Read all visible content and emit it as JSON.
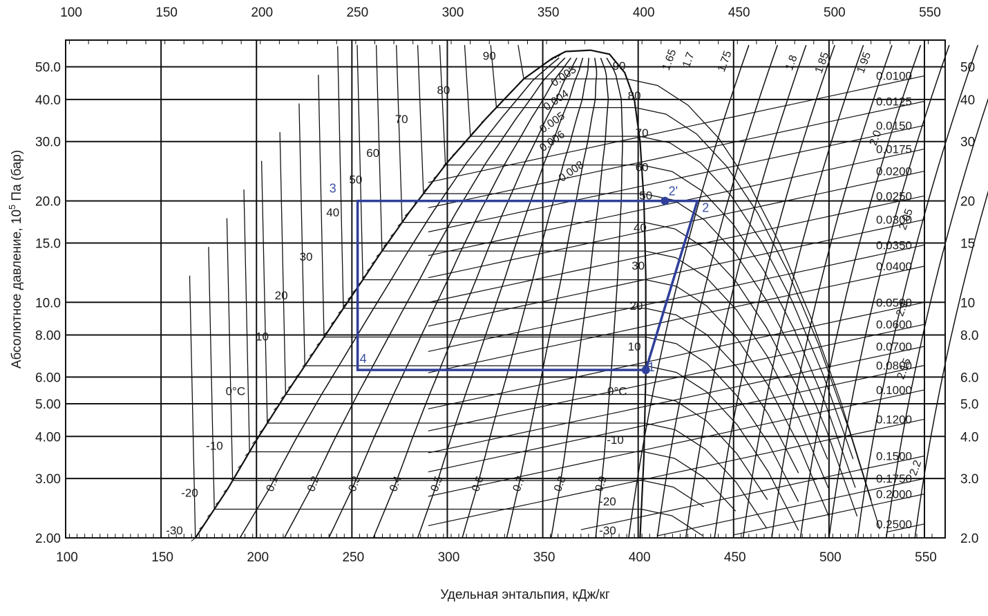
{
  "chart_data": {
    "type": "line",
    "xlabel": "Удельная энтальпия, кДж/кг",
    "ylabel": "Абсолютное давление, 10",
    "ylabel_sup": "5",
    "ylabel_tail": " Па (бар)",
    "x_scale": "linear",
    "y_scale": "log",
    "xlim": [
      100,
      555
    ],
    "ylim": [
      2.0,
      60
    ],
    "grid": true,
    "x_ticks_bottom": [
      "100",
      "150",
      "200",
      "250",
      "300",
      "350",
      "400",
      "450",
      "500",
      "550"
    ],
    "x_ticks_top": [
      "100",
      "150",
      "200",
      "250",
      "300",
      "350",
      "400",
      "450",
      "500",
      "550"
    ],
    "y_ticks_left": [
      {
        "value": 50,
        "label": "50.0"
      },
      {
        "value": 40,
        "label": "40.0"
      },
      {
        "value": 30,
        "label": "30.0"
      },
      {
        "value": 20,
        "label": "20.0"
      },
      {
        "value": 15,
        "label": "15.0"
      },
      {
        "value": 10,
        "label": "10.0"
      },
      {
        "value": 8,
        "label": "8.00"
      },
      {
        "value": 6,
        "label": "6.00"
      },
      {
        "value": 5,
        "label": "5.00"
      },
      {
        "value": 4,
        "label": "4.00"
      },
      {
        "value": 3,
        "label": "3.00"
      },
      {
        "value": 2,
        "label": "2.00"
      }
    ],
    "y_ticks_right": [
      {
        "value": 50,
        "label": "50"
      },
      {
        "value": 40,
        "label": "40"
      },
      {
        "value": 30,
        "label": "30"
      },
      {
        "value": 20,
        "label": "20"
      },
      {
        "value": 15,
        "label": "15"
      },
      {
        "value": 10,
        "label": "10"
      },
      {
        "value": 8,
        "label": "8.0"
      },
      {
        "value": 6,
        "label": "6.0"
      },
      {
        "value": 5,
        "label": "5.0"
      },
      {
        "value": 4,
        "label": "4.0"
      },
      {
        "value": 3,
        "label": "3.0"
      },
      {
        "value": 2,
        "label": "2.0"
      }
    ],
    "saturation_dome": {
      "liquid": [
        [
          168,
          2.0
        ],
        [
          185,
          2.8
        ],
        [
          200,
          3.9
        ],
        [
          215,
          5.3
        ],
        [
          230,
          7.1
        ],
        [
          245,
          9.5
        ],
        [
          255,
          11.5
        ],
        [
          265,
          14.0
        ],
        [
          280,
          18.5
        ],
        [
          300,
          26.0
        ],
        [
          320,
          35.0
        ],
        [
          340,
          46.0
        ],
        [
          355,
          53.0
        ],
        [
          362,
          55.5
        ]
      ],
      "vapor": [
        [
          362,
          55.5
        ],
        [
          375,
          56.0
        ],
        [
          385,
          54.5
        ],
        [
          393,
          48.0
        ],
        [
          398,
          40.0
        ],
        [
          401,
          30.0
        ],
        [
          403,
          20.0
        ],
        [
          404,
          12.0
        ],
        [
          404,
          6.1
        ],
        [
          403,
          3.5
        ],
        [
          401,
          2.0
        ]
      ]
    },
    "liquid_temperature_labels": [
      {
        "text": "90",
        "h": 322,
        "p": 52.5
      },
      {
        "text": "80",
        "h": 298,
        "p": 41.5
      },
      {
        "text": "70",
        "h": 276,
        "p": 34.0
      },
      {
        "text": "60",
        "h": 261,
        "p": 27.0
      },
      {
        "text": "50",
        "h": 252,
        "p": 22.5
      },
      {
        "text": "40",
        "h": 240,
        "p": 18.0
      },
      {
        "text": "30",
        "h": 226,
        "p": 13.3
      },
      {
        "text": "20",
        "h": 213,
        "p": 10.2
      },
      {
        "text": "10",
        "h": 203,
        "p": 7.7
      },
      {
        "text": "0°C",
        "h": 189,
        "p": 5.3
      },
      {
        "text": "-10",
        "h": 178,
        "p": 3.65
      },
      {
        "text": "-20",
        "h": 165,
        "p": 2.65
      },
      {
        "text": "-30",
        "h": 157,
        "p": 2.05
      }
    ],
    "vapor_temperature_labels": [
      {
        "text": "90",
        "h": 390,
        "p": 49.0
      },
      {
        "text": "80",
        "h": 398,
        "p": 40.0
      },
      {
        "text": "70",
        "h": 402,
        "p": 31.0
      },
      {
        "text": "60",
        "h": 402,
        "p": 24.5
      },
      {
        "text": "50",
        "h": 404,
        "p": 20.2
      },
      {
        "text": "40",
        "h": 401,
        "p": 16.2
      },
      {
        "text": "30",
        "h": 400,
        "p": 12.5
      },
      {
        "text": "20",
        "h": 399,
        "p": 9.5
      },
      {
        "text": "10",
        "h": 398,
        "p": 7.2
      },
      {
        "text": "0°C",
        "h": 389,
        "p": 5.3
      },
      {
        "text": "-10",
        "h": 388,
        "p": 3.8
      },
      {
        "text": "-20",
        "h": 384,
        "p": 2.5
      },
      {
        "text": "-30",
        "h": 384,
        "p": 2.05
      }
    ],
    "quality_labels": [
      "0.1",
      "0.2",
      "0.3",
      "0.4",
      "0.5",
      "0.6",
      "0.7",
      "0.8",
      "0.9"
    ],
    "entropy_labels": [
      "1.65",
      "1.7",
      "1.75",
      "1.8",
      "1.85",
      "1.95",
      "2.0",
      "2.05",
      "2.1",
      "2.15",
      "2.2"
    ],
    "specific_volume_labels": [
      "0.003",
      "0.004",
      "0.005",
      "0.006",
      "0.008"
    ],
    "specific_volume_right_labels": [
      {
        "text": "0.0100",
        "p": 47.0
      },
      {
        "text": "0.0125",
        "p": 39.5
      },
      {
        "text": "0.0150",
        "p": 33.5
      },
      {
        "text": "0.0175",
        "p": 28.5
      },
      {
        "text": "0.0200",
        "p": 24.5
      },
      {
        "text": "0.0250",
        "p": 20.7
      },
      {
        "text": "0.0300",
        "p": 17.6
      },
      {
        "text": "0.0350",
        "p": 14.8
      },
      {
        "text": "0.0400",
        "p": 12.8
      },
      {
        "text": "0.0500",
        "p": 10.0
      },
      {
        "text": "0.0600",
        "p": 8.6
      },
      {
        "text": "0.0700",
        "p": 7.4
      },
      {
        "text": "0.0800",
        "p": 6.5
      },
      {
        "text": "0.1000",
        "p": 5.5
      },
      {
        "text": "0.1200",
        "p": 4.5
      },
      {
        "text": "0.1500",
        "p": 3.5
      },
      {
        "text": "0.1750",
        "p": 3.0
      },
      {
        "text": "0.2000",
        "p": 2.7
      },
      {
        "text": "0.2500",
        "p": 2.2
      }
    ],
    "cycle": {
      "color": "#2f3f9a",
      "points": [
        {
          "label": "1",
          "h": 404,
          "p": 6.3
        },
        {
          "label": "2",
          "h": 431,
          "p": 20.0
        },
        {
          "label": "2'",
          "h": 414,
          "p": 20.0
        },
        {
          "label": "3",
          "h": 253,
          "p": 20.0
        },
        {
          "label": "4",
          "h": 253,
          "p": 6.3
        }
      ]
    }
  }
}
